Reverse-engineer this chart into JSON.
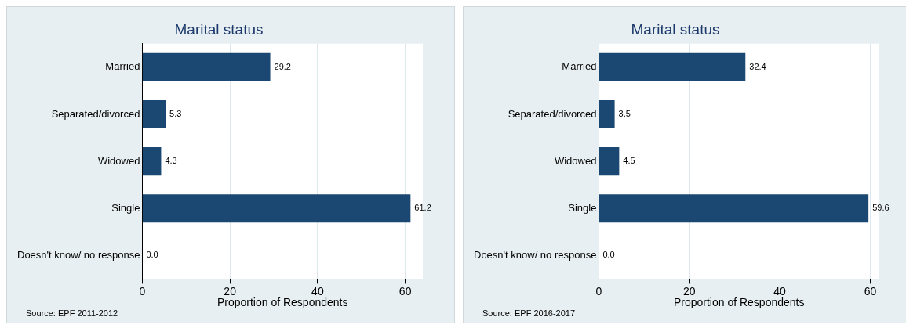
{
  "chart_data": [
    {
      "type": "bar",
      "orientation": "horizontal",
      "title": "Marital status",
      "xlabel": "Proportion of Respondents",
      "categories": [
        "Married",
        "Separated/divorced",
        "Widowed",
        "Single",
        "Doesn't know/ no response"
      ],
      "values": [
        29.2,
        5.3,
        4.3,
        61.2,
        0.0
      ],
      "value_labels": [
        "29.2",
        "5.3",
        "4.3",
        "61.2",
        "0.0"
      ],
      "color": "#1b4872",
      "xlim": [
        0,
        64
      ],
      "xticks": [
        0,
        20,
        40,
        60
      ],
      "grid": "x",
      "legend": false,
      "annotations": [
        "Source: EPF 2011-2012"
      ]
    },
    {
      "type": "bar",
      "orientation": "horizontal",
      "title": "Marital status",
      "xlabel": "Proportion of Respondents",
      "categories": [
        "Married",
        "Separated/divorced",
        "Widowed",
        "Single",
        "Doesn't know/ no response"
      ],
      "values": [
        32.4,
        3.5,
        4.5,
        59.6,
        0.0
      ],
      "value_labels": [
        "32.4",
        "3.5",
        "4.5",
        "59.6",
        "0.0"
      ],
      "color": "#1b4872",
      "xlim": [
        0,
        62
      ],
      "xticks": [
        0,
        20,
        40,
        60
      ],
      "grid": "x",
      "legend": false,
      "annotations": [
        "Source: EPF 2016-2017"
      ]
    }
  ]
}
